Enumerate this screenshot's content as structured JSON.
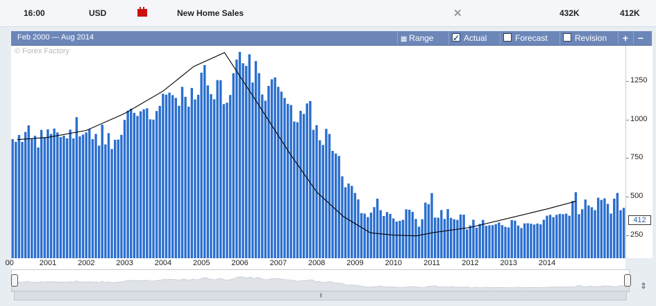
{
  "event": {
    "time": "16:00",
    "currency": "USD",
    "impact_icon": "red-impact-folder-icon",
    "title": "New Home Sales",
    "close_icon": "close-x-icon",
    "actual": "432K",
    "previous": "412K"
  },
  "toolbar": {
    "range_label": "Feb 2000 — Aug 2014",
    "range_button": "Range",
    "actual_label": "Actual",
    "actual_checked": true,
    "forecast_label": "Forecast",
    "forecast_checked": false,
    "revision_label": "Revision",
    "revision_checked": false,
    "zoom_in": "+",
    "zoom_out": "−"
  },
  "watermark": "© Forex Factory",
  "current_value_label": "412",
  "colors": {
    "bar": "#2b6fce",
    "line": "#000000",
    "header": "#6c86b8",
    "impact": "#cc1111"
  },
  "chart_data": {
    "type": "bar",
    "title": "",
    "xlabel": "",
    "ylabel": "",
    "x_start": "2000-02",
    "x_end": "2014-08",
    "x_tick_labels": [
      "00",
      "2001",
      "2002",
      "2003",
      "2004",
      "2005",
      "2006",
      "2007",
      "2008",
      "2009",
      "2010",
      "2011",
      "2012",
      "2013",
      "2014"
    ],
    "y_ticks": [
      250,
      500,
      750,
      1000,
      1250
    ],
    "ylim": [
      100,
      1480
    ],
    "grid": false,
    "series": [
      {
        "values": [
          873,
          856,
          900,
          855,
          920,
          963,
          874,
          895,
          819,
          933,
          883,
          937,
          907,
          942,
          917,
          887,
          896,
          878,
          935,
          878,
          1016,
          891,
          903,
          917,
          939,
          873,
          907,
          831,
          967,
          839,
          912,
          809,
          869,
          871,
          901,
          998,
          1057,
          1071,
          1044,
          1024,
          1054,
          1067,
          1074,
          1002,
          1000,
          1056,
          1089,
          1168,
          1162,
          1175,
          1159,
          1141,
          1090,
          1213,
          1148,
          1084,
          1206,
          1131,
          1161,
          1305,
          1354,
          1222,
          1165,
          1132,
          1257,
          1256,
          1101,
          1110,
          1160,
          1301,
          1390,
          1440,
          1366,
          1349,
          1424,
          1241,
          1380,
          1302,
          1163,
          1123,
          1219,
          1262,
          1274,
          1213,
          1182,
          1141,
          1103,
          1095,
          988,
          983,
          1057,
          1037,
          1105,
          1121,
          934,
          964,
          866,
          836,
          940,
          907,
          797,
          780,
          764,
          632,
          561,
          585,
          570,
          524,
          482,
          393,
          390,
          367,
          396,
          432,
          487,
          412,
          374,
          400,
          388,
          358,
          338,
          343,
          349,
          418,
          415,
          401,
          355,
          305,
          353,
          461,
          451,
          523,
          364,
          363,
          413,
          355,
          419,
          362,
          353,
          349,
          384,
          383,
          287,
          313,
          350,
          298,
          323,
          349,
          311,
          314,
          315,
          322,
          332,
          315,
          304,
          300,
          348,
          344,
          312,
          296,
          326,
          327,
          324,
          319,
          325,
          320,
          350,
          376,
          382,
          367,
          382,
          388,
          386,
          390,
          376,
          472,
          529,
          386,
          418,
          481,
          443,
          431,
          412,
          493,
          479,
          489,
          453,
          390,
          487,
          524,
          412,
          427
        ]
      }
    ],
    "trend_line": [
      [
        2000.2,
        870
      ],
      [
        2001.0,
        885
      ],
      [
        2002.0,
        930
      ],
      [
        2003.0,
        1040
      ],
      [
        2004.0,
        1185
      ],
      [
        2004.8,
        1345
      ],
      [
        2005.6,
        1435
      ],
      [
        2006.4,
        1130
      ],
      [
        2007.3,
        780
      ],
      [
        2008.0,
        530
      ],
      [
        2008.7,
        370
      ],
      [
        2009.4,
        265
      ],
      [
        2010.0,
        250
      ],
      [
        2010.6,
        245
      ],
      [
        2011.0,
        265
      ],
      [
        2012.0,
        300
      ],
      [
        2013.0,
        360
      ],
      [
        2014.0,
        420
      ],
      [
        2014.75,
        470
      ]
    ]
  }
}
